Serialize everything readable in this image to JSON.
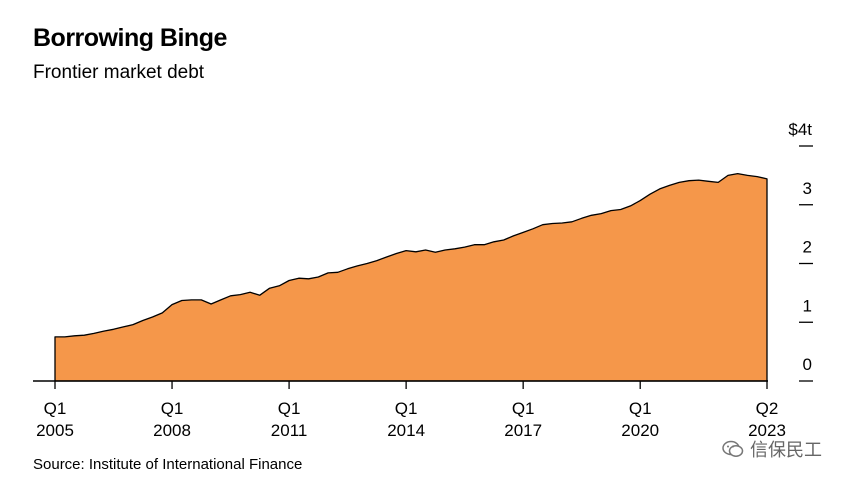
{
  "title": "Borrowing Binge",
  "subtitle": "Frontier market debt",
  "source": "Source: Institute of International Finance",
  "watermark": "信保民工",
  "colors": {
    "area": "#F5974A",
    "axis": "#000000"
  },
  "chart_data": {
    "type": "area",
    "title": "Borrowing Binge",
    "subtitle": "Frontier market debt",
    "xlabel": "",
    "ylabel": "",
    "ylim": [
      0,
      4
    ],
    "y_axis_side": "right",
    "y_ticks": [
      {
        "value": 4,
        "label": "$4t"
      },
      {
        "value": 3,
        "label": "3"
      },
      {
        "value": 2,
        "label": "2"
      },
      {
        "value": 1,
        "label": "1"
      },
      {
        "value": 0,
        "label": "0"
      }
    ],
    "x_ticks": [
      {
        "x": 2005.0,
        "q": "Q1",
        "year": "2005"
      },
      {
        "x": 2008.0,
        "q": "Q1",
        "year": "2008"
      },
      {
        "x": 2011.0,
        "q": "Q1",
        "year": "2011"
      },
      {
        "x": 2014.0,
        "q": "Q1",
        "year": "2014"
      },
      {
        "x": 2017.0,
        "q": "Q1",
        "year": "2017"
      },
      {
        "x": 2020.0,
        "q": "Q1",
        "year": "2020"
      },
      {
        "x": 2023.25,
        "q": "Q2",
        "year": "2023"
      }
    ],
    "xlim": [
      2005.0,
      2023.25
    ],
    "series": [
      {
        "values": [
          [
            2005.0,
            0.75
          ],
          [
            2005.25,
            0.75
          ],
          [
            2005.5,
            0.77
          ],
          [
            2005.75,
            0.78
          ],
          [
            2006.0,
            0.81
          ],
          [
            2006.25,
            0.85
          ],
          [
            2006.5,
            0.88
          ],
          [
            2006.75,
            0.92
          ],
          [
            2007.0,
            0.96
          ],
          [
            2007.25,
            1.03
          ],
          [
            2007.5,
            1.09
          ],
          [
            2007.75,
            1.16
          ],
          [
            2008.0,
            1.3
          ],
          [
            2008.25,
            1.37
          ],
          [
            2008.5,
            1.38
          ],
          [
            2008.75,
            1.38
          ],
          [
            2009.0,
            1.31
          ],
          [
            2009.25,
            1.38
          ],
          [
            2009.5,
            1.45
          ],
          [
            2009.75,
            1.47
          ],
          [
            2010.0,
            1.51
          ],
          [
            2010.25,
            1.46
          ],
          [
            2010.5,
            1.58
          ],
          [
            2010.75,
            1.62
          ],
          [
            2011.0,
            1.71
          ],
          [
            2011.25,
            1.75
          ],
          [
            2011.5,
            1.74
          ],
          [
            2011.75,
            1.77
          ],
          [
            2012.0,
            1.84
          ],
          [
            2012.25,
            1.85
          ],
          [
            2012.5,
            1.91
          ],
          [
            2012.75,
            1.96
          ],
          [
            2013.0,
            2.0
          ],
          [
            2013.25,
            2.05
          ],
          [
            2013.5,
            2.11
          ],
          [
            2013.75,
            2.17
          ],
          [
            2014.0,
            2.22
          ],
          [
            2014.25,
            2.2
          ],
          [
            2014.5,
            2.23
          ],
          [
            2014.75,
            2.19
          ],
          [
            2015.0,
            2.23
          ],
          [
            2015.25,
            2.25
          ],
          [
            2015.5,
            2.28
          ],
          [
            2015.75,
            2.32
          ],
          [
            2016.0,
            2.32
          ],
          [
            2016.25,
            2.37
          ],
          [
            2016.5,
            2.4
          ],
          [
            2016.75,
            2.47
          ],
          [
            2017.0,
            2.53
          ],
          [
            2017.25,
            2.59
          ],
          [
            2017.5,
            2.66
          ],
          [
            2017.75,
            2.68
          ],
          [
            2018.0,
            2.69
          ],
          [
            2018.25,
            2.71
          ],
          [
            2018.5,
            2.77
          ],
          [
            2018.75,
            2.82
          ],
          [
            2019.0,
            2.85
          ],
          [
            2019.25,
            2.9
          ],
          [
            2019.5,
            2.92
          ],
          [
            2019.75,
            2.98
          ],
          [
            2020.0,
            3.07
          ],
          [
            2020.25,
            3.18
          ],
          [
            2020.5,
            3.27
          ],
          [
            2020.75,
            3.33
          ],
          [
            2021.0,
            3.38
          ],
          [
            2021.25,
            3.41
          ],
          [
            2021.5,
            3.42
          ],
          [
            2021.75,
            3.4
          ],
          [
            2022.0,
            3.38
          ],
          [
            2022.25,
            3.5
          ],
          [
            2022.5,
            3.53
          ],
          [
            2022.75,
            3.5
          ],
          [
            2023.0,
            3.48
          ],
          [
            2023.25,
            3.44
          ]
        ]
      }
    ]
  }
}
